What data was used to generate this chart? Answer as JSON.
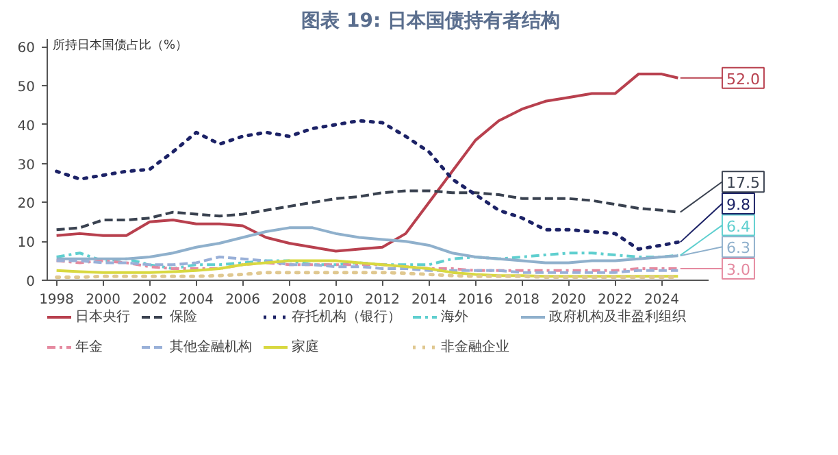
{
  "chart_data": {
    "type": "line",
    "title": "图表 19: 日本国债持有者结构",
    "ylabel": "所持日本国债占比（%）",
    "x": [
      1998,
      1999,
      2000,
      2001,
      2002,
      2003,
      2004,
      2005,
      2006,
      2007,
      2008,
      2009,
      2010,
      2011,
      2012,
      2013,
      2014,
      2015,
      2016,
      2017,
      2018,
      2019,
      2020,
      2021,
      2022,
      2023,
      2024,
      2024.7
    ],
    "xlim": [
      1997.6,
      2026
    ],
    "xticks": [
      1998,
      2000,
      2002,
      2004,
      2006,
      2008,
      2010,
      2012,
      2014,
      2016,
      2018,
      2020,
      2022,
      2024
    ],
    "ylim": [
      0,
      62
    ],
    "yticks": [
      0,
      10,
      20,
      30,
      40,
      50,
      60
    ],
    "grid": false,
    "legend": "bottom",
    "series": [
      {
        "name": "日本央行",
        "color": "#b8404e",
        "line_style": "solid",
        "values": [
          11.5,
          12,
          11.5,
          11.5,
          15,
          15.5,
          14.5,
          14.5,
          14,
          11,
          9.5,
          8.5,
          7.5,
          8,
          8.5,
          12,
          20,
          28,
          36,
          41,
          44,
          46,
          47,
          48,
          48,
          53,
          53,
          52.0
        ],
        "value_labels": [
          null,
          null,
          null,
          null,
          null,
          null,
          null,
          null,
          null,
          null,
          null,
          null,
          null,
          null,
          null,
          null,
          null,
          null,
          null,
          null,
          null,
          null,
          null,
          null,
          null,
          null,
          null,
          "52.0"
        ]
      },
      {
        "name": "保险",
        "color": "#3a4250",
        "line_style": "dashed",
        "values": [
          13,
          13.5,
          15.5,
          15.5,
          16,
          17.5,
          17,
          16.5,
          17,
          18,
          19,
          20,
          21,
          21.5,
          22.5,
          23,
          23,
          22.5,
          22.5,
          22,
          21,
          21,
          21,
          20.5,
          19.5,
          18.5,
          18,
          17.5
        ],
        "value_labels": [
          null,
          null,
          null,
          null,
          null,
          null,
          null,
          null,
          null,
          null,
          null,
          null,
          null,
          null,
          null,
          null,
          null,
          null,
          null,
          null,
          null,
          null,
          null,
          null,
          null,
          null,
          null,
          "17.5"
        ]
      },
      {
        "name": "存托机构（银行）",
        "color": "#1c2266",
        "line_style": "dotted",
        "values": [
          28,
          26,
          27,
          28,
          28.5,
          33,
          38,
          35,
          37,
          38,
          37,
          39,
          40,
          41,
          40.5,
          37,
          33,
          26,
          22,
          18,
          16,
          13,
          13,
          12.5,
          12,
          8,
          9,
          9.8
        ],
        "value_labels": [
          null,
          null,
          null,
          null,
          null,
          null,
          null,
          null,
          null,
          null,
          null,
          null,
          null,
          null,
          null,
          null,
          null,
          null,
          null,
          null,
          null,
          null,
          null,
          null,
          null,
          null,
          null,
          "9.8"
        ]
      },
      {
        "name": "海外",
        "color": "#5fcfcf",
        "line_style": "dashdot",
        "values": [
          6,
          7,
          5,
          5.5,
          4,
          3,
          4,
          4,
          4.5,
          5,
          5,
          4,
          4,
          4.5,
          4,
          4,
          4,
          5.5,
          6,
          5.5,
          6,
          6.5,
          7,
          7,
          6.5,
          6,
          6,
          6.4
        ],
        "value_labels": [
          null,
          null,
          null,
          null,
          null,
          null,
          null,
          null,
          null,
          null,
          null,
          null,
          null,
          null,
          null,
          null,
          null,
          null,
          null,
          null,
          null,
          null,
          null,
          null,
          null,
          null,
          null,
          "6.4"
        ]
      },
      {
        "name": "政府机构及非盈利组织",
        "color": "#8fb0cc",
        "line_style": "solid",
        "values": [
          5.5,
          5.5,
          5.5,
          5.5,
          6,
          7,
          8.5,
          9.5,
          11,
          12.5,
          13.5,
          13.5,
          12,
          11,
          10.5,
          10,
          9,
          7,
          6,
          5.5,
          5,
          4.5,
          4.5,
          5,
          5,
          5.5,
          6,
          6.3
        ],
        "value_labels": [
          null,
          null,
          null,
          null,
          null,
          null,
          null,
          null,
          null,
          null,
          null,
          null,
          null,
          null,
          null,
          null,
          null,
          null,
          null,
          null,
          null,
          null,
          null,
          null,
          null,
          null,
          null,
          "6.3"
        ]
      },
      {
        "name": "年金",
        "color": "#e58aa0",
        "line_style": "dashdot",
        "values": [
          5,
          4.5,
          5,
          4.5,
          3.5,
          3,
          3,
          3,
          4,
          4.5,
          4,
          4,
          4,
          4,
          4,
          3.5,
          3,
          3,
          2.5,
          2.5,
          2.5,
          2.5,
          2.5,
          2.5,
          2.5,
          3,
          3,
          3.0
        ],
        "value_labels": [
          null,
          null,
          null,
          null,
          null,
          null,
          null,
          null,
          null,
          null,
          null,
          null,
          null,
          null,
          null,
          null,
          null,
          null,
          null,
          null,
          null,
          null,
          null,
          null,
          null,
          null,
          null,
          "3.0"
        ]
      },
      {
        "name": "其他金融机构",
        "color": "#99b0d8",
        "line_style": "dashed",
        "values": [
          5,
          5,
          4.5,
          4.5,
          4,
          4,
          4.5,
          6,
          5.5,
          5,
          4,
          4,
          3.5,
          3.5,
          3,
          3,
          2.5,
          2.5,
          2.5,
          2.5,
          2,
          2,
          2,
          2,
          2,
          2.5,
          2.5,
          2.5
        ]
      },
      {
        "name": "家庭",
        "color": "#d8d840",
        "line_style": "solid",
        "values": [
          2.5,
          2.2,
          2,
          2,
          2,
          2.2,
          2.5,
          3,
          4,
          4.5,
          5,
          5,
          5,
          4.5,
          4,
          3.5,
          3,
          2,
          1.5,
          1.2,
          1.2,
          1,
          1,
          1,
          1,
          1,
          1,
          1
        ]
      },
      {
        "name": "非金融企业",
        "color": "#e0c890",
        "line_style": "dotted",
        "values": [
          0.8,
          0.8,
          1,
          1,
          1,
          1,
          1,
          1.2,
          1.5,
          2,
          2,
          2,
          2,
          2,
          2,
          1.8,
          1.5,
          1.2,
          1,
          1,
          1,
          0.8,
          0.8,
          0.8,
          0.8,
          0.8,
          0.8,
          0.8
        ]
      }
    ]
  }
}
